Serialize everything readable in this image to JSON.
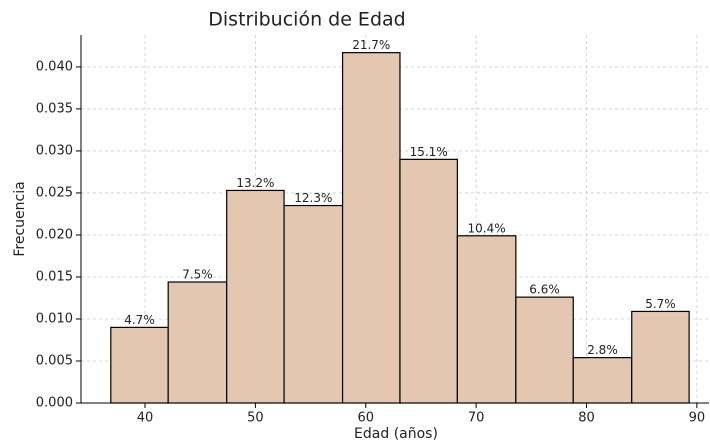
{
  "chart_data": {
    "type": "histogram",
    "title": "Distribución de Edad",
    "xlabel": "Edad (años)",
    "ylabel": "Frecuencia",
    "bins": [
      36.9,
      42.1,
      47.4,
      52.6,
      57.9,
      63.1,
      68.3,
      73.6,
      78.8,
      84.1,
      89.3
    ],
    "values": [
      0.009,
      0.0144,
      0.0253,
      0.0235,
      0.0417,
      0.029,
      0.0199,
      0.0126,
      0.0054,
      0.0109
    ],
    "value_labels": [
      "4.7%",
      "7.5%",
      "13.2%",
      "12.3%",
      "21.7%",
      "15.1%",
      "10.4%",
      "6.6%",
      "2.8%",
      "5.7%"
    ],
    "color": "#e3c7b1",
    "edgecolor": "#000000",
    "xlim": [
      34.2,
      91.1
    ],
    "xticks": [
      40,
      50,
      60,
      70,
      80,
      90
    ],
    "ylim": [
      0,
      0.0438
    ],
    "yticks": [
      {
        "value": 0,
        "label": "0.000"
      },
      {
        "value": 0.005,
        "label": "0.005"
      },
      {
        "value": 0.01,
        "label": "0.010"
      },
      {
        "value": 0.015,
        "label": "0.015"
      },
      {
        "value": 0.02,
        "label": "0.020"
      },
      {
        "value": 0.025,
        "label": "0.025"
      },
      {
        "value": 0.03,
        "label": "0.030"
      },
      {
        "value": 0.035,
        "label": "0.035"
      },
      {
        "value": 0.04,
        "label": "0.040"
      }
    ],
    "grid": true
  }
}
